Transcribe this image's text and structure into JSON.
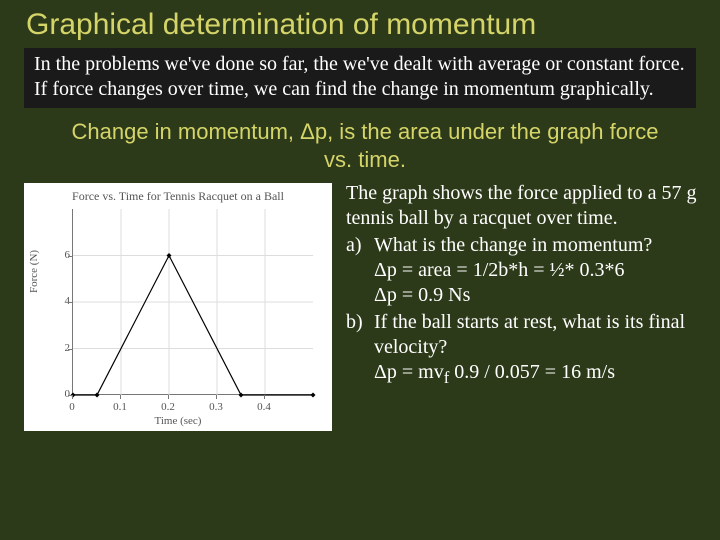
{
  "title": "Graphical determination of momentum",
  "intro": "In the problems we've done so far, the we've dealt with average or constant force.  If force changes over time, we can find the change in momentum graphically.",
  "subtitle": "Change in momentum, Δp, is the area under the graph force vs. time.",
  "chart": {
    "type": "line",
    "title": "Force vs. Time for Tennis Racquet on a Ball",
    "xlabel": "Time (sec)",
    "ylabel": "Force (N)",
    "xlim": [
      0,
      0.5
    ],
    "ylim": [
      0,
      8
    ],
    "xticks": [
      0,
      0.1,
      0.2,
      0.3,
      0.4
    ],
    "xtick_labels": [
      "0",
      "0.1",
      "0.2",
      "0.3",
      "0.4"
    ],
    "yticks": [
      0,
      2,
      4,
      6
    ],
    "ytick_labels": [
      "0",
      "2",
      "4",
      "6"
    ],
    "points": [
      [
        0,
        0
      ],
      [
        0.05,
        0
      ],
      [
        0.2,
        6
      ],
      [
        0.35,
        0
      ],
      [
        0.5,
        0
      ]
    ],
    "line_color": "#000000",
    "line_width": 1.2,
    "marker": "diamond",
    "marker_size": 5,
    "marker_color": "#000000",
    "background_color": "#ffffff",
    "grid_color": "#dddddd",
    "axis_color": "#777777",
    "tick_fontsize": 11,
    "label_fontsize": 11,
    "title_fontsize": 12
  },
  "caption": "The graph shows the force applied to a 57 g tennis ball by a racquet over time.",
  "qa": {
    "a": {
      "label": "a)",
      "question": "What is the change in momentum?",
      "line1": "Δp = area = 1/2b*h = ½* 0.3*6",
      "line2": "Δp = 0.9 Ns"
    },
    "b": {
      "label": "b)",
      "question": "If the ball starts at rest, what is its final velocity?",
      "line1": "Δp = mv",
      "sub": "f",
      "line1b": "    0.9 / 0.057 = 16 m/s"
    }
  }
}
